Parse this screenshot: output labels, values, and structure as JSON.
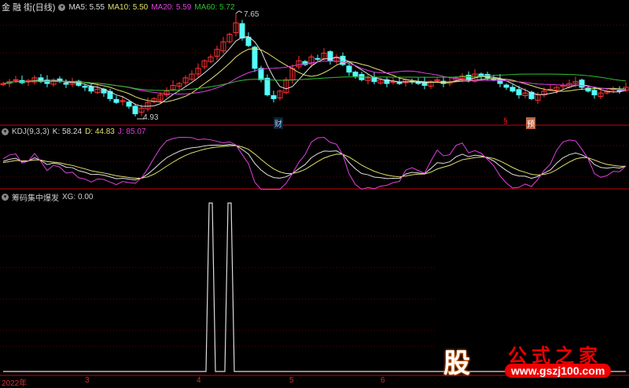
{
  "main_panel": {
    "title": "金 融 街(日线)",
    "ma5": "MA5: 5.55",
    "ma10": "MA10: 5.50",
    "ma20": "MA20: 5.59",
    "ma60": "MA60: 5.72",
    "high_label": "7.65",
    "low_label": "4.93",
    "marks": [
      "财",
      "§",
      "预"
    ]
  },
  "kdj_panel": {
    "title": "KDJ(9,3,3)",
    "k": "K: 58.24",
    "d": "D: 44.83",
    "j": "J: 85.07"
  },
  "xg_panel": {
    "title": "筹码集中爆发",
    "xg": "XG: 0.00",
    "spike_indices": [
      33,
      36
    ]
  },
  "axis": {
    "ticks": [
      "2022年",
      "3",
      "4",
      "5",
      "6"
    ]
  },
  "colors": {
    "up": "#ff3232",
    "down": "#54fcfc",
    "ma5": "#e0e0e0",
    "ma10": "#e0e070",
    "ma20": "#e040e0",
    "ma60": "#30c030",
    "grid": "#6a0000"
  },
  "watermark": {
    "logo_char": "股",
    "title": "公式之家",
    "url": "www.gszj100.com"
  },
  "chart_data": {
    "type": "candlestick",
    "price_range": [
      4.93,
      7.65
    ],
    "closes": [
      5.8,
      5.85,
      5.9,
      5.82,
      5.88,
      5.95,
      5.85,
      5.8,
      5.9,
      5.85,
      5.78,
      5.82,
      5.75,
      5.7,
      5.6,
      5.65,
      5.55,
      5.4,
      5.3,
      5.35,
      5.2,
      5.0,
      5.15,
      5.3,
      5.4,
      5.5,
      5.6,
      5.75,
      5.8,
      5.95,
      6.05,
      6.2,
      6.4,
      6.5,
      6.7,
      6.9,
      7.1,
      7.4,
      7.0,
      6.8,
      6.2,
      5.9,
      5.5,
      5.4,
      5.6,
      5.9,
      6.2,
      6.4,
      6.3,
      6.5,
      6.45,
      6.6,
      6.4,
      6.5,
      6.3,
      6.1,
      6.0,
      5.9,
      5.95,
      5.85,
      5.9,
      5.8,
      5.85,
      5.8,
      5.9,
      5.85,
      5.8,
      5.75,
      5.85,
      5.9,
      5.8,
      5.85,
      5.95,
      6.0,
      5.9,
      6.05,
      6.0,
      5.95,
      5.9,
      5.8,
      5.7,
      5.6,
      5.5,
      5.55,
      5.4,
      5.5,
      5.6,
      5.65,
      5.7,
      5.75,
      5.8,
      5.85,
      5.7,
      5.6,
      5.5,
      5.55,
      5.6,
      5.65,
      5.6,
      5.7
    ]
  }
}
